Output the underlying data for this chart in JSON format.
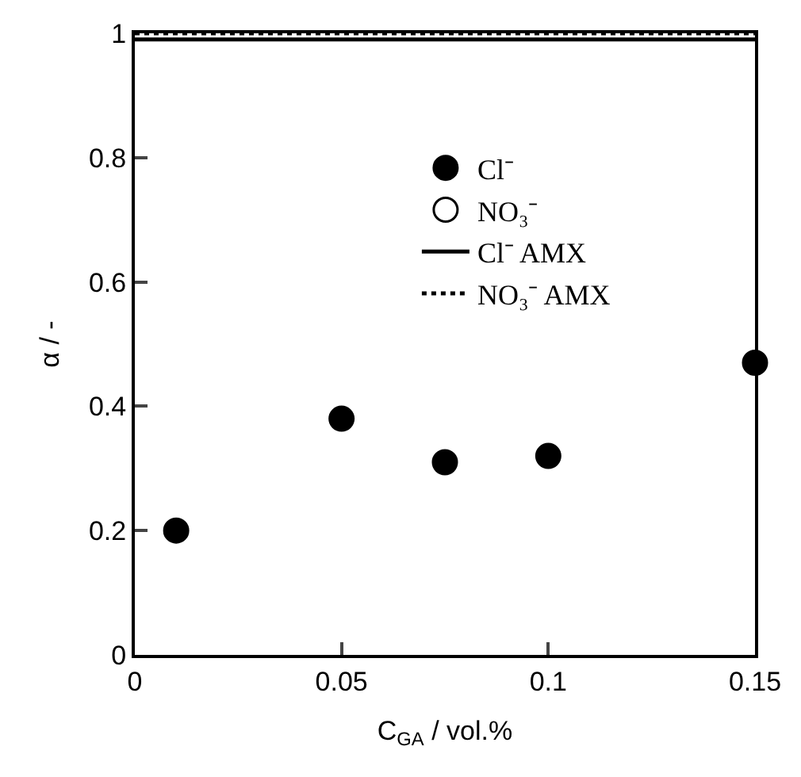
{
  "chart_data": {
    "type": "scatter",
    "xlabel": "C$_{GA}$ / vol.%",
    "ylabel": "α / -",
    "x": [
      0.01,
      0.05,
      0.075,
      0.1,
      0.15
    ],
    "series": [
      {
        "name": "Cl⁻",
        "color": "#000000",
        "values": [
          0.2,
          0.38,
          0.31,
          0.32,
          0.47
        ],
        "marker": "circle"
      },
      {
        "name": "NO₃⁻",
        "color": "#000000",
        "values": [
          null,
          null,
          null,
          null,
          null
        ],
        "marker": "circle-open"
      }
    ],
    "ref_lines": [
      {
        "axis": "y",
        "value": 0.99,
        "label": "Cl⁻ AMX",
        "color": "#000000",
        "line_style": "solid"
      },
      {
        "axis": "y",
        "value": 1,
        "label": "NO₃⁻ AMX",
        "color": "#000000",
        "line_style": "dotted"
      }
    ],
    "xlim": [
      0,
      0.15
    ],
    "xticks": [
      0,
      0.05,
      0.1,
      0.15
    ],
    "ylim": [
      0,
      1
    ],
    "yticks": [
      0,
      0.2,
      0.4,
      0.6,
      0.8,
      1
    ],
    "grid": false,
    "legend": "top right"
  }
}
